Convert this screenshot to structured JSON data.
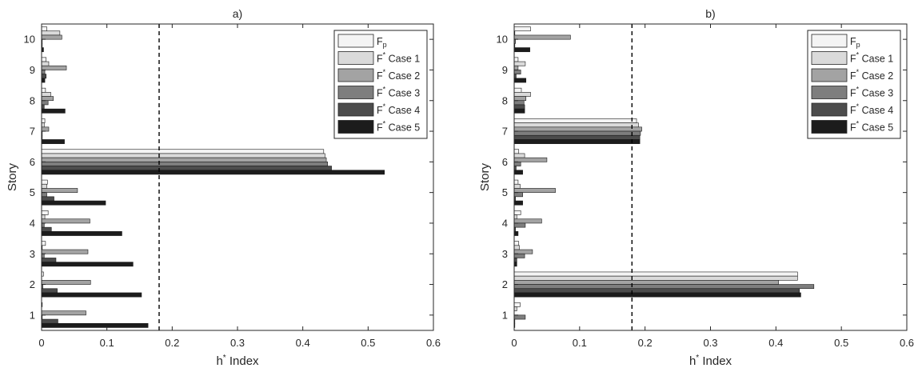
{
  "chart_data": [
    {
      "type": "bar",
      "orientation": "horizontal",
      "title": "a)",
      "xlabel": "h",
      "xlabel_sup": "*",
      "xlabel_rest": " Index",
      "ylabel": "Story",
      "xlim": [
        0,
        0.6
      ],
      "xticks": [
        "0",
        "0.1",
        "0.2",
        "0.3",
        "0.4",
        "0.5",
        "0.6"
      ],
      "threshold": 0.18,
      "categories": [
        "1",
        "2",
        "3",
        "4",
        "5",
        "6",
        "7",
        "8",
        "9",
        "10"
      ],
      "legend_position": "top-right",
      "series": [
        {
          "name": "F",
          "name_sub": "p",
          "name_sup": "",
          "name_rest": "",
          "color": "#f4f4f4",
          "values": [
            0.001,
            0.003,
            0.006,
            0.01,
            0.009,
            0.432,
            0.005,
            0.006,
            0.007,
            0.008
          ]
        },
        {
          "name": "F",
          "name_sub": "",
          "name_sup": "*",
          "name_rest": " Case 1",
          "color": "#dadada",
          "values": [
            0.0,
            0.0,
            0.001,
            0.005,
            0.008,
            0.434,
            0.004,
            0.014,
            0.011,
            0.028
          ]
        },
        {
          "name": "F",
          "name_sub": "",
          "name_sup": "*",
          "name_rest": " Case 2",
          "color": "#a3a3a3",
          "values": [
            0.068,
            0.075,
            0.071,
            0.074,
            0.055,
            0.436,
            0.011,
            0.018,
            0.038,
            0.031
          ]
        },
        {
          "name": "F",
          "name_sub": "",
          "name_sup": "*",
          "name_rest": " Case 3",
          "color": "#7e7e7e",
          "values": [
            0.001,
            0.002,
            0.004,
            0.004,
            0.008,
            0.438,
            0.001,
            0.01,
            0.005,
            0.001
          ]
        },
        {
          "name": "F",
          "name_sub": "",
          "name_sup": "*",
          "name_rest": " Case 4",
          "color": "#4c4c4c",
          "values": [
            0.025,
            0.024,
            0.022,
            0.015,
            0.019,
            0.444,
            0.001,
            0.004,
            0.007,
            0.001
          ]
        },
        {
          "name": "F",
          "name_sub": "",
          "name_sup": "*",
          "name_rest": " Case 5",
          "color": "#1c1c1c",
          "values": [
            0.163,
            0.153,
            0.14,
            0.123,
            0.098,
            0.525,
            0.035,
            0.036,
            0.005,
            0.003
          ]
        }
      ]
    },
    {
      "type": "bar",
      "orientation": "horizontal",
      "title": "b)",
      "xlabel": "h",
      "xlabel_sup": "*",
      "xlabel_rest": " Index",
      "ylabel": "Story",
      "xlim": [
        0,
        0.6
      ],
      "xticks": [
        "0",
        "0.1",
        "0.2",
        "0.3",
        "0.4",
        "0.5",
        "0.6"
      ],
      "threshold": 0.18,
      "categories": [
        "1",
        "2",
        "3",
        "4",
        "5",
        "6",
        "7",
        "8",
        "9",
        "10"
      ],
      "legend_position": "top-right",
      "series": [
        {
          "name": "F",
          "name_sub": "p",
          "name_sup": "",
          "name_rest": "",
          "color": "#f4f4f4",
          "values": [
            0.009,
            0.433,
            0.007,
            0.01,
            0.006,
            0.007,
            0.187,
            0.011,
            0.006,
            0.025
          ]
        },
        {
          "name": "F",
          "name_sub": "",
          "name_sup": "*",
          "name_rest": " Case 1",
          "color": "#dadada",
          "values": [
            0.004,
            0.433,
            0.008,
            0.004,
            0.009,
            0.016,
            0.19,
            0.025,
            0.017,
            0.001
          ]
        },
        {
          "name": "F",
          "name_sub": "",
          "name_sup": "*",
          "name_rest": " Case 2",
          "color": "#a3a3a3",
          "values": [
            0.0,
            0.404,
            0.028,
            0.042,
            0.063,
            0.05,
            0.195,
            0.018,
            0.006,
            0.086
          ]
        },
        {
          "name": "F",
          "name_sub": "",
          "name_sup": "*",
          "name_rest": " Case 3",
          "color": "#7e7e7e",
          "values": [
            0.017,
            0.458,
            0.016,
            0.017,
            0.013,
            0.01,
            0.193,
            0.015,
            0.01,
            0.002
          ]
        },
        {
          "name": "F",
          "name_sub": "",
          "name_sup": "*",
          "name_rest": " Case 4",
          "color": "#4c4c4c",
          "values": [
            0.001,
            0.436,
            0.004,
            0.002,
            0.002,
            0.003,
            0.192,
            0.016,
            0.003,
            0.001
          ]
        },
        {
          "name": "F",
          "name_sub": "",
          "name_sup": "*",
          "name_rest": " Case 5",
          "color": "#1c1c1c",
          "values": [
            0.001,
            0.438,
            0.004,
            0.006,
            0.013,
            0.013,
            0.192,
            0.016,
            0.018,
            0.024
          ]
        }
      ]
    }
  ]
}
